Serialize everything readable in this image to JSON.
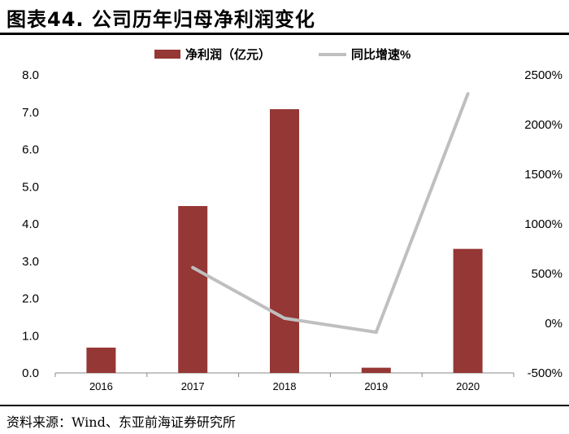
{
  "header": {
    "title": "图表44. 公司历年归母净利润变化"
  },
  "footer": {
    "source": "资料来源：Wind、东亚前海证券研究所"
  },
  "chart_data": {
    "type": "bar",
    "categories": [
      "2016",
      "2017",
      "2018",
      "2019",
      "2020"
    ],
    "series": [
      {
        "name": "净利润（亿元）",
        "type": "bar",
        "axis": "left",
        "color": "#953735",
        "values": [
          0.68,
          4.48,
          7.08,
          0.14,
          3.33
        ]
      },
      {
        "name": "同比增速%",
        "type": "line",
        "axis": "right",
        "color": "#bfbfbf",
        "values": [
          null,
          560,
          50,
          -90,
          2310
        ]
      }
    ],
    "y_left": {
      "ylim": [
        0,
        8
      ],
      "ticks": [
        "0.0",
        "1.0",
        "2.0",
        "3.0",
        "4.0",
        "5.0",
        "6.0",
        "7.0",
        "8.0"
      ]
    },
    "y_right": {
      "ylim": [
        -500,
        2500
      ],
      "ticks": [
        "-500%",
        "0%",
        "500%",
        "1000%",
        "1500%",
        "2000%",
        "2500%"
      ]
    },
    "legend_position": "top-center",
    "grid": false
  }
}
